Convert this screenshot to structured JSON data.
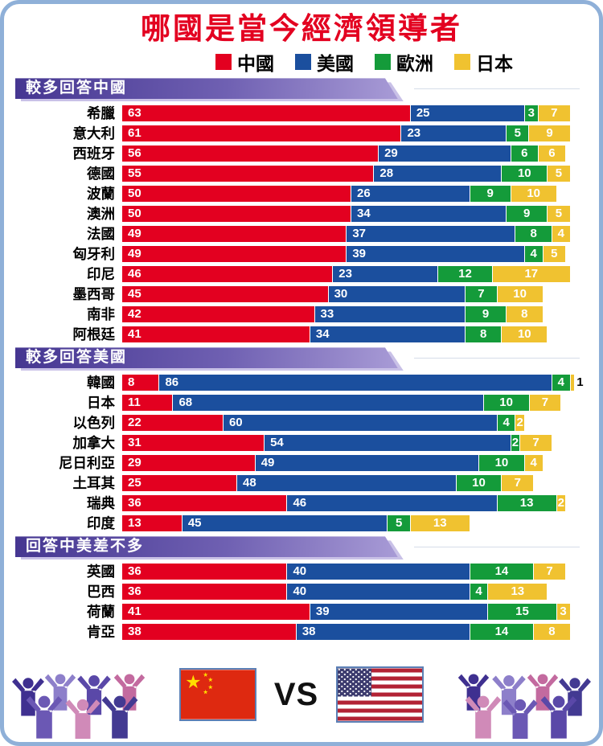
{
  "title": "哪國是當今經濟領導者",
  "legend": [
    {
      "label": "中國",
      "color": "#e30020"
    },
    {
      "label": "美國",
      "color": "#1b4f9e"
    },
    {
      "label": "歐洲",
      "color": "#149b3a"
    },
    {
      "label": "日本",
      "color": "#f0c230"
    }
  ],
  "footer": {
    "vs_label": "VS"
  },
  "chart_data": {
    "type": "bar",
    "orientation": "horizontal",
    "stacked": true,
    "unit": "percent",
    "xlim": [
      0,
      100
    ],
    "title": "哪國是當今經濟領導者",
    "legend_position": "top",
    "series_names": [
      "中國",
      "美國",
      "歐洲",
      "日本"
    ],
    "series_colors": [
      "#e30020",
      "#1b4f9e",
      "#149b3a",
      "#f0c230"
    ],
    "sections": [
      {
        "header": "較多回答中國",
        "rows": [
          {
            "country": "希臘",
            "values": [
              63,
              25,
              3,
              7
            ]
          },
          {
            "country": "意大利",
            "values": [
              61,
              23,
              5,
              9
            ]
          },
          {
            "country": "西班牙",
            "values": [
              56,
              29,
              6,
              6
            ]
          },
          {
            "country": "德國",
            "values": [
              55,
              28,
              10,
              5
            ]
          },
          {
            "country": "波蘭",
            "values": [
              50,
              26,
              9,
              10
            ]
          },
          {
            "country": "澳洲",
            "values": [
              50,
              34,
              9,
              5
            ]
          },
          {
            "country": "法國",
            "values": [
              49,
              37,
              8,
              4
            ]
          },
          {
            "country": "匈牙利",
            "values": [
              49,
              39,
              4,
              5
            ]
          },
          {
            "country": "印尼",
            "values": [
              46,
              23,
              12,
              17
            ]
          },
          {
            "country": "墨西哥",
            "values": [
              45,
              30,
              7,
              10
            ]
          },
          {
            "country": "南非",
            "values": [
              42,
              33,
              9,
              8
            ]
          },
          {
            "country": "阿根廷",
            "values": [
              41,
              34,
              8,
              10
            ]
          }
        ]
      },
      {
        "header": "較多回答美國",
        "rows": [
          {
            "country": "韓國",
            "values": [
              8,
              86,
              4,
              1
            ]
          },
          {
            "country": "日本",
            "values": [
              11,
              68,
              10,
              7
            ]
          },
          {
            "country": "以色列",
            "values": [
              22,
              60,
              4,
              2
            ]
          },
          {
            "country": "加拿大",
            "values": [
              31,
              54,
              2,
              7
            ]
          },
          {
            "country": "尼日利亞",
            "values": [
              29,
              49,
              10,
              4
            ]
          },
          {
            "country": "土耳其",
            "values": [
              25,
              48,
              10,
              7
            ]
          },
          {
            "country": "瑞典",
            "values": [
              36,
              46,
              13,
              2
            ]
          },
          {
            "country": "印度",
            "values": [
              13,
              45,
              5,
              13
            ]
          }
        ]
      },
      {
        "header": "回答中美差不多",
        "rows": [
          {
            "country": "英國",
            "values": [
              36,
              40,
              14,
              7
            ]
          },
          {
            "country": "巴西",
            "values": [
              36,
              40,
              4,
              13
            ]
          },
          {
            "country": "荷蘭",
            "values": [
              41,
              39,
              15,
              3
            ]
          },
          {
            "country": "肯亞",
            "values": [
              38,
              38,
              14,
              8
            ]
          }
        ]
      }
    ]
  }
}
